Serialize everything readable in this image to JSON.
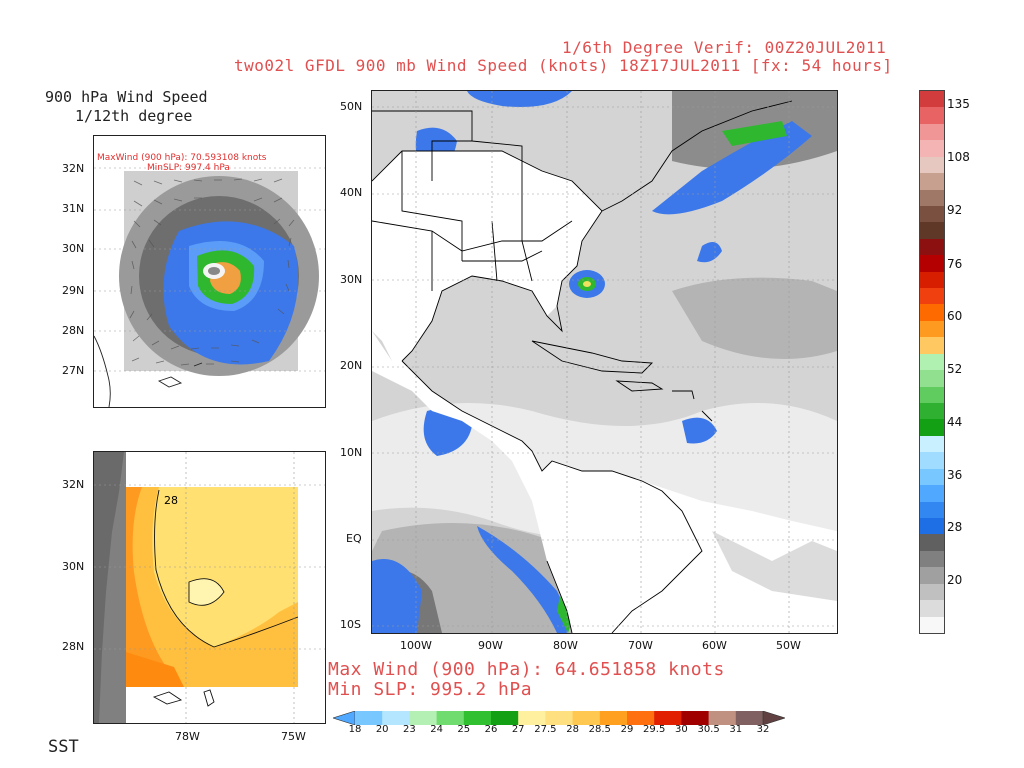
{
  "header": {
    "verif": "1/6th Degree Verif: 00Z20JUL2011",
    "run": "two02l GFDL 900 mb Wind Speed (knots) 18Z17JUL2011 [fx: 54 hours]"
  },
  "inset_wind": {
    "title_line1": "900 hPa Wind Speed",
    "title_line2": "1/12th degree",
    "maxwind_text": "MaxWind (900 hPa): 70.593108 knots",
    "minslp_text": "MinSLP: 997.4 hPa",
    "lat_ticks": [
      "32N",
      "31N",
      "30N",
      "29N",
      "28N",
      "27N"
    ]
  },
  "inset_sst": {
    "label": "SST",
    "contour_label": "28",
    "lat_ticks": [
      "32N",
      "30N",
      "28N"
    ],
    "lon_ticks": [
      "78W",
      "75W"
    ]
  },
  "main_map": {
    "lat_ticks": [
      "50N",
      "40N",
      "30N",
      "20N",
      "10N",
      "EQ",
      "10S"
    ],
    "lon_ticks": [
      "100W",
      "90W",
      "80W",
      "70W",
      "60W",
      "50W"
    ],
    "max_wind": "Max Wind (900 hPa): 64.651858 knots",
    "min_slp": "Min SLP: 995.2 hPa"
  },
  "wind_colorbar": {
    "labels": [
      "135",
      "108",
      "92",
      "76",
      "60",
      "52",
      "44",
      "36",
      "28",
      "20"
    ],
    "colors": [
      "#d23c3c",
      "#e86464",
      "#f09696",
      "#f5b4b4",
      "#e6c8c0",
      "#c8a090",
      "#a07868",
      "#7a5040",
      "#603828",
      "#8c1010",
      "#b40000",
      "#d81e00",
      "#f04010",
      "#ff6a00",
      "#ff9a20",
      "#ffc860",
      "#b0f0b0",
      "#90e090",
      "#60cc60",
      "#30b030",
      "#14a014",
      "#c8f0ff",
      "#a0dcff",
      "#78c8ff",
      "#50a8ff",
      "#3288f0",
      "#1e6ee6",
      "#606060",
      "#808080",
      "#a0a0a0",
      "#c0c0c0",
      "#dcdcdc",
      "#f8f8f8"
    ]
  },
  "sst_colorbar": {
    "labels": [
      "18",
      "20",
      "23",
      "24",
      "25",
      "26",
      "27",
      "27.5",
      "28",
      "28.5",
      "29",
      "29.5",
      "30",
      "30.5",
      "31",
      "32"
    ],
    "colors": [
      "#50a8ff",
      "#78c8ff",
      "#b4e6ff",
      "#b4f0b4",
      "#70dc70",
      "#30c030",
      "#14a014",
      "#fff0a0",
      "#ffe080",
      "#ffc850",
      "#ffa020",
      "#ff7010",
      "#e02000",
      "#a00000",
      "#c09080",
      "#806060",
      "#604040"
    ]
  }
}
